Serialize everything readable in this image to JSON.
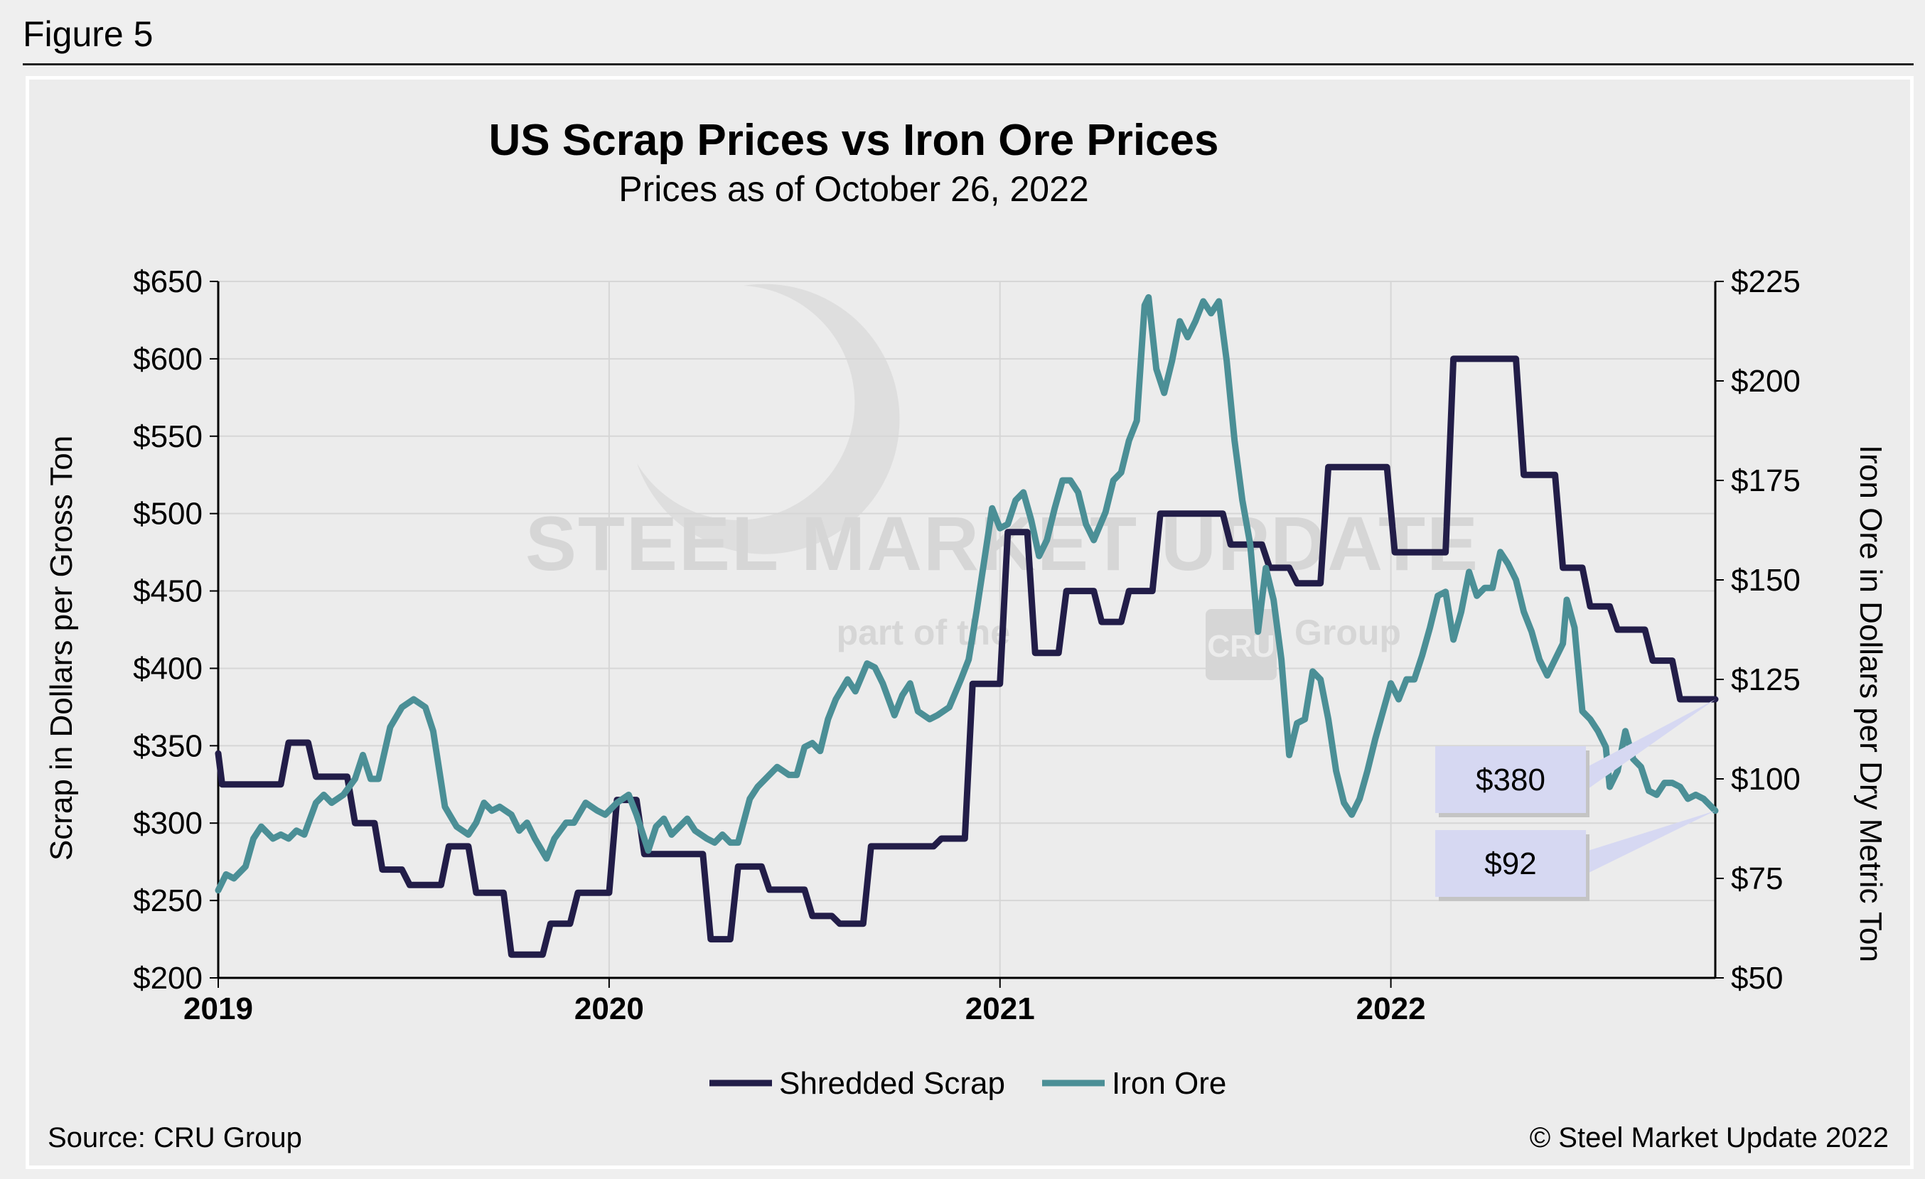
{
  "figure_label": "Figure 5",
  "source": "Source: CRU Group",
  "copyright": "© Steel Market Update 2022",
  "colors": {
    "scrap": "#221d48",
    "ore": "#4b8f96",
    "callout_bg": "#d6d8f2",
    "grid": "#d6d6d6",
    "watermark": "#d4d4d4"
  },
  "watermark": {
    "brand": "STEEL MARKET UPDATE",
    "tag_prefix": "part of the",
    "tag_logo": "CRU",
    "tag_suffix": "Group"
  },
  "chart_data": {
    "type": "line",
    "title": "US Scrap Prices vs Iron Ore Prices",
    "subtitle": "Prices as of October 26, 2022",
    "ylabel": "Scrap in Dollars per Gross Ton",
    "y2label": "Iron Ore in Dollars per Dry Metric Ton",
    "ylim": [
      200,
      650
    ],
    "y2lim": [
      50,
      225
    ],
    "xlim": [
      2019.0,
      2022.83
    ],
    "x_ticks": [
      "2019",
      "2020",
      "2021",
      "2022"
    ],
    "y_ticks": [
      "$200",
      "$250",
      "$300",
      "$350",
      "$400",
      "$450",
      "$500",
      "$550",
      "$600",
      "$650"
    ],
    "y2_ticks": [
      "$50",
      "$75",
      "$100",
      "$125",
      "$150",
      "$175",
      "$200",
      "$225"
    ],
    "legend_placement": "bottom-center",
    "grid": true,
    "series": [
      {
        "name": "Shredded Scrap",
        "axis": "left",
        "points": [
          [
            2019.0,
            345
          ],
          [
            2019.01,
            325
          ],
          [
            2019.16,
            325
          ],
          [
            2019.18,
            352
          ],
          [
            2019.23,
            352
          ],
          [
            2019.25,
            330
          ],
          [
            2019.33,
            330
          ],
          [
            2019.35,
            300
          ],
          [
            2019.4,
            300
          ],
          [
            2019.42,
            270
          ],
          [
            2019.47,
            270
          ],
          [
            2019.49,
            260
          ],
          [
            2019.57,
            260
          ],
          [
            2019.59,
            285
          ],
          [
            2019.64,
            285
          ],
          [
            2019.66,
            255
          ],
          [
            2019.73,
            255
          ],
          [
            2019.75,
            215
          ],
          [
            2019.83,
            215
          ],
          [
            2019.85,
            235
          ],
          [
            2019.9,
            235
          ],
          [
            2019.92,
            255
          ],
          [
            2020.0,
            255
          ],
          [
            2020.02,
            315
          ],
          [
            2020.07,
            315
          ],
          [
            2020.09,
            280
          ],
          [
            2020.24,
            280
          ],
          [
            2020.26,
            225
          ],
          [
            2020.31,
            225
          ],
          [
            2020.33,
            272
          ],
          [
            2020.39,
            272
          ],
          [
            2020.41,
            257
          ],
          [
            2020.5,
            257
          ],
          [
            2020.52,
            240
          ],
          [
            2020.57,
            240
          ],
          [
            2020.59,
            235
          ],
          [
            2020.65,
            235
          ],
          [
            2020.67,
            285
          ],
          [
            2020.83,
            285
          ],
          [
            2020.85,
            290
          ],
          [
            2020.91,
            290
          ],
          [
            2020.93,
            390
          ],
          [
            2021.0,
            390
          ],
          [
            2021.02,
            488
          ],
          [
            2021.07,
            488
          ],
          [
            2021.09,
            410
          ],
          [
            2021.15,
            410
          ],
          [
            2021.17,
            450
          ],
          [
            2021.24,
            450
          ],
          [
            2021.26,
            430
          ],
          [
            2021.31,
            430
          ],
          [
            2021.33,
            450
          ],
          [
            2021.39,
            450
          ],
          [
            2021.41,
            500
          ],
          [
            2021.57,
            500
          ],
          [
            2021.59,
            480
          ],
          [
            2021.67,
            480
          ],
          [
            2021.69,
            465
          ],
          [
            2021.74,
            465
          ],
          [
            2021.76,
            455
          ],
          [
            2021.82,
            455
          ],
          [
            2021.84,
            530
          ],
          [
            2021.99,
            530
          ],
          [
            2022.01,
            475
          ],
          [
            2022.14,
            475
          ],
          [
            2022.16,
            600
          ],
          [
            2022.32,
            600
          ],
          [
            2022.34,
            525
          ],
          [
            2022.42,
            525
          ],
          [
            2022.44,
            465
          ],
          [
            2022.49,
            465
          ],
          [
            2022.51,
            440
          ],
          [
            2022.56,
            440
          ],
          [
            2022.58,
            425
          ],
          [
            2022.65,
            425
          ],
          [
            2022.67,
            405
          ],
          [
            2022.72,
            405
          ],
          [
            2022.74,
            380
          ],
          [
            2022.83,
            380
          ]
        ],
        "last_label": "$380"
      },
      {
        "name": "Iron Ore",
        "axis": "right",
        "points": [
          [
            2019.0,
            72
          ],
          [
            2019.02,
            76
          ],
          [
            2019.04,
            75
          ],
          [
            2019.07,
            78
          ],
          [
            2019.09,
            85
          ],
          [
            2019.11,
            88
          ],
          [
            2019.14,
            85
          ],
          [
            2019.16,
            86
          ],
          [
            2019.18,
            85
          ],
          [
            2019.2,
            87
          ],
          [
            2019.22,
            86
          ],
          [
            2019.25,
            94
          ],
          [
            2019.27,
            96
          ],
          [
            2019.29,
            94
          ],
          [
            2019.32,
            96
          ],
          [
            2019.35,
            100
          ],
          [
            2019.37,
            106
          ],
          [
            2019.39,
            100
          ],
          [
            2019.41,
            100
          ],
          [
            2019.44,
            113
          ],
          [
            2019.47,
            118
          ],
          [
            2019.5,
            120
          ],
          [
            2019.53,
            118
          ],
          [
            2019.55,
            112
          ],
          [
            2019.58,
            93
          ],
          [
            2019.61,
            88
          ],
          [
            2019.64,
            86
          ],
          [
            2019.66,
            89
          ],
          [
            2019.68,
            94
          ],
          [
            2019.7,
            92
          ],
          [
            2019.72,
            93
          ],
          [
            2019.75,
            91
          ],
          [
            2019.77,
            87
          ],
          [
            2019.79,
            89
          ],
          [
            2019.81,
            85
          ],
          [
            2019.84,
            80
          ],
          [
            2019.86,
            85
          ],
          [
            2019.89,
            89
          ],
          [
            2019.91,
            89
          ],
          [
            2019.94,
            94
          ],
          [
            2019.97,
            92
          ],
          [
            2019.99,
            91
          ],
          [
            2020.02,
            94
          ],
          [
            2020.05,
            96
          ],
          [
            2020.07,
            91
          ],
          [
            2020.1,
            82
          ],
          [
            2020.12,
            88
          ],
          [
            2020.14,
            90
          ],
          [
            2020.16,
            86
          ],
          [
            2020.18,
            88
          ],
          [
            2020.2,
            90
          ],
          [
            2020.22,
            87
          ],
          [
            2020.25,
            85
          ],
          [
            2020.27,
            84
          ],
          [
            2020.29,
            86
          ],
          [
            2020.31,
            84
          ],
          [
            2020.33,
            84
          ],
          [
            2020.36,
            95
          ],
          [
            2020.38,
            98
          ],
          [
            2020.4,
            100
          ],
          [
            2020.43,
            103
          ],
          [
            2020.46,
            101
          ],
          [
            2020.48,
            101
          ],
          [
            2020.5,
            108
          ],
          [
            2020.52,
            109
          ],
          [
            2020.54,
            107
          ],
          [
            2020.56,
            115
          ],
          [
            2020.58,
            120
          ],
          [
            2020.61,
            125
          ],
          [
            2020.63,
            122
          ],
          [
            2020.66,
            129
          ],
          [
            2020.68,
            128
          ],
          [
            2020.7,
            124
          ],
          [
            2020.73,
            116
          ],
          [
            2020.75,
            121
          ],
          [
            2020.77,
            124
          ],
          [
            2020.79,
            117
          ],
          [
            2020.82,
            115
          ],
          [
            2020.84,
            116
          ],
          [
            2020.87,
            118
          ],
          [
            2020.9,
            125
          ],
          [
            2020.92,
            130
          ],
          [
            2020.94,
            142
          ],
          [
            2020.96,
            155
          ],
          [
            2020.98,
            168
          ],
          [
            2021.0,
            163
          ],
          [
            2021.02,
            164
          ],
          [
            2021.04,
            170
          ],
          [
            2021.06,
            172
          ],
          [
            2021.08,
            165
          ],
          [
            2021.1,
            156
          ],
          [
            2021.12,
            160
          ],
          [
            2021.14,
            168
          ],
          [
            2021.16,
            175
          ],
          [
            2021.18,
            175
          ],
          [
            2021.2,
            172
          ],
          [
            2021.22,
            164
          ],
          [
            2021.24,
            160
          ],
          [
            2021.27,
            167
          ],
          [
            2021.29,
            175
          ],
          [
            2021.31,
            177
          ],
          [
            2021.33,
            185
          ],
          [
            2021.35,
            190
          ],
          [
            2021.37,
            219
          ],
          [
            2021.38,
            221
          ],
          [
            2021.4,
            203
          ],
          [
            2021.42,
            197
          ],
          [
            2021.44,
            205
          ],
          [
            2021.46,
            215
          ],
          [
            2021.48,
            211
          ],
          [
            2021.5,
            215
          ],
          [
            2021.52,
            220
          ],
          [
            2021.54,
            217
          ],
          [
            2021.56,
            220
          ],
          [
            2021.58,
            205
          ],
          [
            2021.6,
            185
          ],
          [
            2021.62,
            170
          ],
          [
            2021.64,
            159
          ],
          [
            2021.66,
            137
          ],
          [
            2021.68,
            153
          ],
          [
            2021.7,
            145
          ],
          [
            2021.72,
            130
          ],
          [
            2021.74,
            106
          ],
          [
            2021.76,
            114
          ],
          [
            2021.78,
            115
          ],
          [
            2021.8,
            127
          ],
          [
            2021.82,
            125
          ],
          [
            2021.84,
            115
          ],
          [
            2021.86,
            102
          ],
          [
            2021.88,
            94
          ],
          [
            2021.9,
            91
          ],
          [
            2021.92,
            95
          ],
          [
            2021.94,
            102
          ],
          [
            2021.96,
            110
          ],
          [
            2021.98,
            117
          ],
          [
            2022.0,
            124
          ],
          [
            2022.02,
            120
          ],
          [
            2022.04,
            125
          ],
          [
            2022.06,
            125
          ],
          [
            2022.08,
            131
          ],
          [
            2022.1,
            138
          ],
          [
            2022.12,
            146
          ],
          [
            2022.14,
            147
          ],
          [
            2022.16,
            135
          ],
          [
            2022.18,
            142
          ],
          [
            2022.2,
            152
          ],
          [
            2022.22,
            146
          ],
          [
            2022.24,
            148
          ],
          [
            2022.26,
            148
          ],
          [
            2022.28,
            157
          ],
          [
            2022.3,
            154
          ],
          [
            2022.32,
            150
          ],
          [
            2022.34,
            142
          ],
          [
            2022.36,
            137
          ],
          [
            2022.38,
            130
          ],
          [
            2022.4,
            126
          ],
          [
            2022.42,
            130
          ],
          [
            2022.44,
            134
          ],
          [
            2022.45,
            145
          ],
          [
            2022.47,
            138
          ],
          [
            2022.49,
            117
          ],
          [
            2022.51,
            115
          ],
          [
            2022.53,
            112
          ],
          [
            2022.55,
            108
          ],
          [
            2022.56,
            98
          ],
          [
            2022.58,
            102
          ],
          [
            2022.6,
            112
          ],
          [
            2022.62,
            105
          ],
          [
            2022.64,
            103
          ],
          [
            2022.66,
            97
          ],
          [
            2022.68,
            96
          ],
          [
            2022.7,
            99
          ],
          [
            2022.72,
            99
          ],
          [
            2022.74,
            98
          ],
          [
            2022.76,
            95
          ],
          [
            2022.78,
            96
          ],
          [
            2022.8,
            95
          ],
          [
            2022.83,
            92
          ]
        ],
        "last_label": "$92"
      }
    ]
  }
}
